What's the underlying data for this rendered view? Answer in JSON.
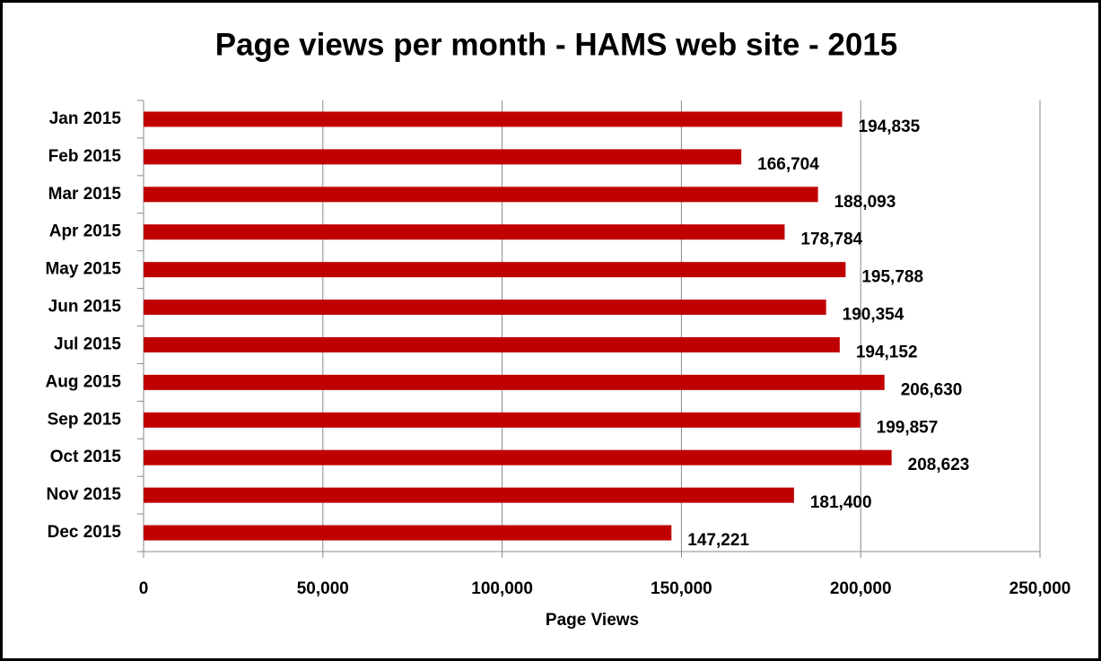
{
  "chart_data": {
    "type": "barh",
    "title": "Page views per month - HAMS web site - 2015",
    "xlabel": "Page Views",
    "categories": [
      "Jan 2015",
      "Feb 2015",
      "Mar 2015",
      "Apr 2015",
      "May 2015",
      "Jun 2015",
      "Jul 2015",
      "Aug 2015",
      "Sep 2015",
      "Oct 2015",
      "Nov 2015",
      "Dec 2015"
    ],
    "values": [
      194835,
      166704,
      188093,
      178784,
      195788,
      190354,
      194152,
      206630,
      199857,
      208623,
      181400,
      147221
    ],
    "value_labels": [
      "194,835",
      "166,704",
      "188,093",
      "178,784",
      "195,788",
      "190,354",
      "194,152",
      "206,630",
      "199,857",
      "208,623",
      "181,400",
      "147,221"
    ],
    "color": "#c00000",
    "xlim": [
      0,
      250000
    ],
    "xticks": [
      0,
      {
        "value": 50000,
        "label": "50,000"
      },
      {
        "value": 100000,
        "label": "100,000"
      },
      {
        "value": 150000,
        "label": "150,000"
      },
      {
        "value": 200000,
        "label": "200,000"
      },
      {
        "value": 250000,
        "label": "250,000"
      }
    ],
    "grid": true
  }
}
